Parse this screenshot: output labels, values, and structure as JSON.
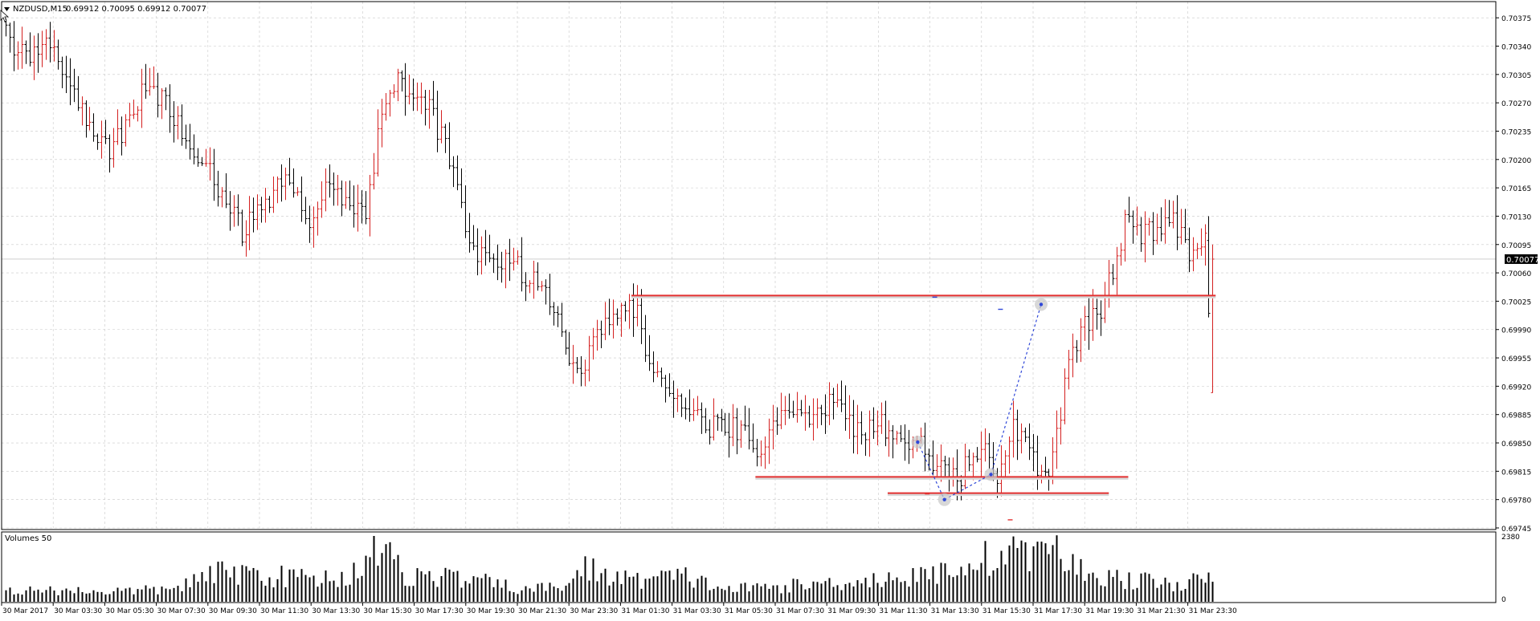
{
  "window": {
    "symbol_label": "NZDUSD,M15",
    "ohlc_label": "0.69912 0.70095 0.69912 0.70077",
    "volume_label": "Volumes 50",
    "current_price": "0.70077"
  },
  "colors": {
    "background": "#ffffff",
    "bull_bar": "#d42020",
    "bear_bar": "#000000",
    "grid": "#c8c8c8",
    "level_line": "#e33030",
    "trend_line": "#3048d8",
    "price_box_bg": "#000000",
    "price_box_fg": "#ffffff"
  },
  "chart_data": {
    "type": "ohlc-bar",
    "symbol": "NZDUSD",
    "timeframe": "M15",
    "y_ticks": [
      "0.70375",
      "0.70340",
      "0.70305",
      "0.70270",
      "0.70235",
      "0.70200",
      "0.70165",
      "0.70130",
      "0.70095",
      "0.70060",
      "0.70025",
      "0.69990",
      "0.69955",
      "0.69920",
      "0.69885",
      "0.69850",
      "0.69815",
      "0.69780",
      "0.69745"
    ],
    "y_range": [
      0.69745,
      0.70395
    ],
    "x_ticks": [
      "30 Mar 2017",
      "30 Mar 03:30",
      "30 Mar 05:30",
      "30 Mar 07:30",
      "30 Mar 09:30",
      "30 Mar 11:30",
      "30 Mar 13:30",
      "30 Mar 15:30",
      "30 Mar 17:30",
      "30 Mar 19:30",
      "30 Mar 21:30",
      "30 Mar 23:30",
      "31 Mar 01:30",
      "31 Mar 03:30",
      "31 Mar 05:30",
      "31 Mar 07:30",
      "31 Mar 09:30",
      "31 Mar 11:30",
      "31 Mar 13:30",
      "31 Mar 15:30",
      "31 Mar 17:30",
      "31 Mar 19:30",
      "31 Mar 21:30",
      "31 Mar 23:30"
    ],
    "volume_ticks": [
      "2380",
      "0"
    ],
    "volume_max": 2380,
    "grid": true,
    "anchor_closes": [
      [
        0,
        0.7036
      ],
      [
        3,
        0.70335
      ],
      [
        8,
        0.7033
      ],
      [
        12,
        0.7035
      ],
      [
        16,
        0.7029
      ],
      [
        20,
        0.70255
      ],
      [
        26,
        0.70215
      ],
      [
        30,
        0.7024
      ],
      [
        34,
        0.7028
      ],
      [
        40,
        0.7027
      ],
      [
        44,
        0.7023
      ],
      [
        50,
        0.7019
      ],
      [
        56,
        0.7014
      ],
      [
        59,
        0.7011
      ],
      [
        64,
        0.7014
      ],
      [
        70,
        0.70175
      ],
      [
        76,
        0.7013
      ],
      [
        80,
        0.7016
      ],
      [
        86,
        0.7015
      ],
      [
        90,
        0.70135
      ],
      [
        94,
        0.7026
      ],
      [
        98,
        0.70295
      ],
      [
        104,
        0.7028
      ],
      [
        108,
        0.7024
      ],
      [
        112,
        0.7019
      ],
      [
        116,
        0.7009
      ],
      [
        122,
        0.7007
      ],
      [
        126,
        0.7008
      ],
      [
        130,
        0.70055
      ],
      [
        134,
        0.7004
      ],
      [
        138,
        0.7001
      ],
      [
        142,
        0.69935
      ],
      [
        146,
        0.6996
      ],
      [
        150,
        0.7
      ],
      [
        156,
        0.70015
      ],
      [
        158,
        0.7001
      ],
      [
        160,
        0.6996
      ],
      [
        166,
        0.6991
      ],
      [
        170,
        0.699
      ],
      [
        176,
        0.6987
      ],
      [
        182,
        0.6987
      ],
      [
        188,
        0.69845
      ],
      [
        194,
        0.6988
      ],
      [
        200,
        0.69885
      ],
      [
        206,
        0.699
      ],
      [
        210,
        0.6988
      ],
      [
        214,
        0.6986
      ],
      [
        218,
        0.6988
      ],
      [
        222,
        0.69855
      ],
      [
        226,
        0.6984
      ],
      [
        230,
        0.69845
      ],
      [
        234,
        0.69815
      ],
      [
        238,
        0.698
      ],
      [
        242,
        0.69845
      ],
      [
        246,
        0.69835
      ],
      [
        248,
        0.6979
      ],
      [
        252,
        0.6987
      ],
      [
        256,
        0.69835
      ],
      [
        260,
        0.69815
      ],
      [
        262,
        0.6983
      ],
      [
        266,
        0.69945
      ],
      [
        270,
        0.69995
      ],
      [
        274,
        0.7001
      ],
      [
        276,
        0.70045
      ],
      [
        280,
        0.7012
      ],
      [
        284,
        0.7011
      ],
      [
        288,
        0.70115
      ],
      [
        292,
        0.70125
      ],
      [
        296,
        0.70085
      ],
      [
        300,
        0.70105
      ],
      [
        302,
        0.69995
      ]
    ],
    "candles": [],
    "volumes": [],
    "volume_anchors": [
      [
        0,
        410
      ],
      [
        10,
        420
      ],
      [
        25,
        380
      ],
      [
        40,
        430
      ],
      [
        55,
        1100
      ],
      [
        70,
        900
      ],
      [
        85,
        830
      ],
      [
        92,
        1900
      ],
      [
        95,
        1700
      ],
      [
        100,
        950
      ],
      [
        110,
        900
      ],
      [
        120,
        700
      ],
      [
        130,
        420
      ],
      [
        140,
        600
      ],
      [
        145,
        1200
      ],
      [
        155,
        800
      ],
      [
        170,
        900
      ],
      [
        180,
        450
      ],
      [
        200,
        600
      ],
      [
        215,
        800
      ],
      [
        230,
        900
      ],
      [
        240,
        1400
      ],
      [
        250,
        1700
      ],
      [
        255,
        2200
      ],
      [
        258,
        1600
      ],
      [
        262,
        2100
      ],
      [
        266,
        1300
      ],
      [
        275,
        900
      ],
      [
        290,
        650
      ],
      [
        300,
        760
      ],
      [
        303,
        760
      ]
    ],
    "annotations": {
      "horizontal_levels": [
        {
          "price": 0.70032,
          "x_start": 0.4215,
          "x_end": 0.8125
        },
        {
          "price": 0.69808,
          "x_start": 0.5045,
          "x_end": 0.754
        },
        {
          "price": 0.69788,
          "x_start": 0.593,
          "x_end": 0.741
        }
      ],
      "trend_points": [
        {
          "x": 0.6131,
          "price": 0.69851
        },
        {
          "x": 0.631,
          "price": 0.6978
        },
        {
          "x": 0.6621,
          "price": 0.69811
        },
        {
          "x": 0.6957,
          "price": 0.70021
        }
      ]
    }
  }
}
